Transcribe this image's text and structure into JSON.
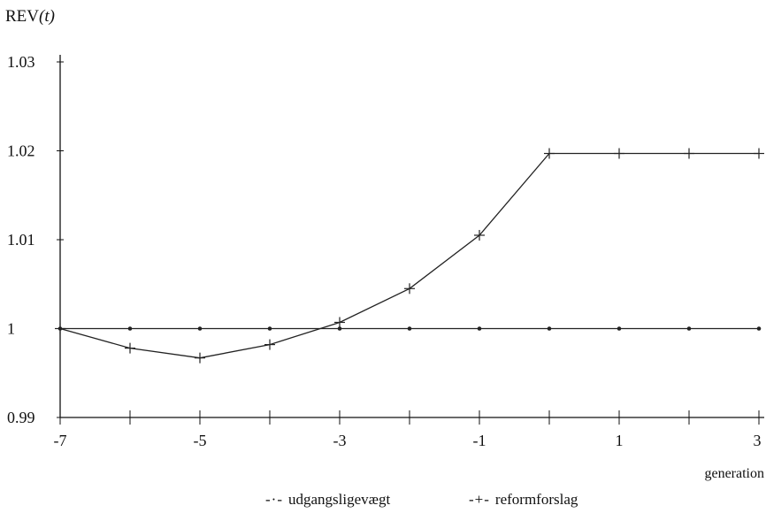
{
  "chart_data": {
    "type": "line",
    "ylabel": {
      "main": "REV",
      "var": "(t)"
    },
    "xlabel": "generation",
    "ylim": [
      0.99,
      1.03
    ],
    "xlim": [
      -7,
      3
    ],
    "yticks": [
      "1.03",
      "1.02",
      "1.01",
      "1",
      "0.99"
    ],
    "ytick_values": [
      1.03,
      1.02,
      1.01,
      1.0,
      0.99
    ],
    "xticks": [
      "-7",
      "-5",
      "-3",
      "-1",
      "1",
      "3"
    ],
    "xtick_values": [
      -7,
      -5,
      -3,
      -1,
      1,
      3
    ],
    "grid": false,
    "legend_position": "bottom",
    "series": [
      {
        "name": "udgangsligevægt",
        "symbol": "-·-",
        "marker": "dot",
        "x": [
          -7,
          -6,
          -5,
          -4,
          -3,
          -2,
          -1,
          0,
          1,
          2,
          3
        ],
        "y": [
          1.0,
          1.0,
          1.0,
          1.0,
          1.0,
          1.0,
          1.0,
          1.0,
          1.0,
          1.0,
          1.0
        ]
      },
      {
        "name": "reformforslag",
        "symbol": "-+-",
        "marker": "plus",
        "x": [
          -7,
          -6,
          -5,
          -4,
          -3,
          -2,
          -1,
          0,
          1,
          2,
          3
        ],
        "y": [
          1.0,
          0.9978,
          0.9967,
          0.9982,
          1.0007,
          1.0045,
          1.0105,
          1.0197,
          1.0197,
          1.0197,
          1.0197
        ]
      }
    ],
    "colors": {
      "axis": "#111111",
      "line": "#222222"
    }
  }
}
